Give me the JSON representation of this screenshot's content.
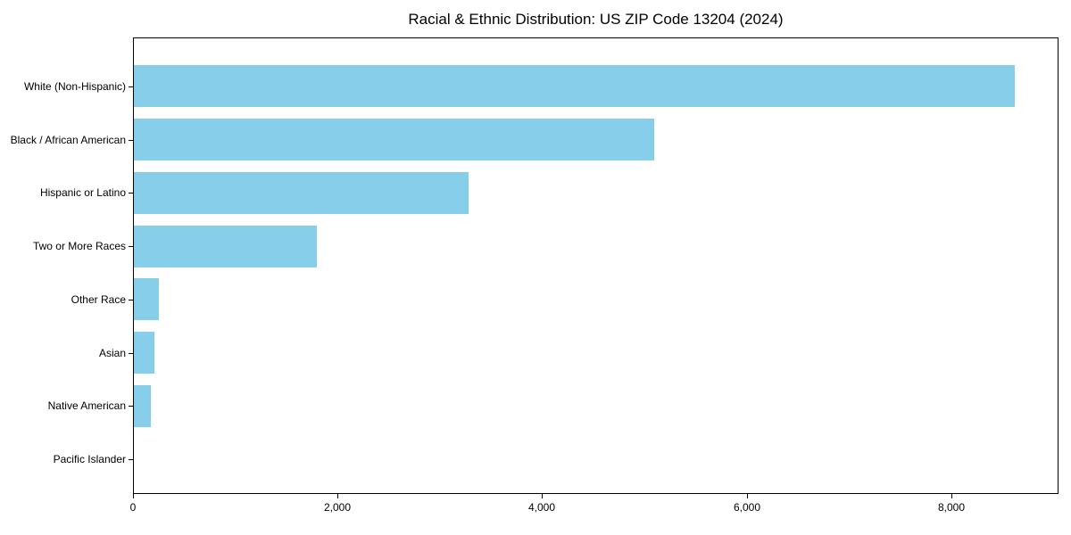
{
  "chart_data": {
    "type": "bar",
    "orientation": "horizontal",
    "title": "Racial & Ethnic Distribution: US ZIP Code 13204 (2024)",
    "categories": [
      "White (Non-Hispanic)",
      "Black / African American",
      "Hispanic or Latino",
      "Two or More Races",
      "Other Race",
      "Asian",
      "Native American",
      "Pacific Islander"
    ],
    "values": [
      8610,
      5090,
      3270,
      1790,
      245,
      200,
      165,
      0
    ],
    "xlabel": "",
    "ylabel": "",
    "xlim": [
      0,
      9050
    ],
    "x_ticks": [
      0,
      2000,
      4000,
      6000,
      8000
    ],
    "x_tick_labels": [
      "0",
      "2,000",
      "4,000",
      "6,000",
      "8,000"
    ],
    "bar_color": "#87CEEB",
    "axis_color": "#000000",
    "background_color": "#ffffff",
    "grid": false,
    "legend": null
  }
}
